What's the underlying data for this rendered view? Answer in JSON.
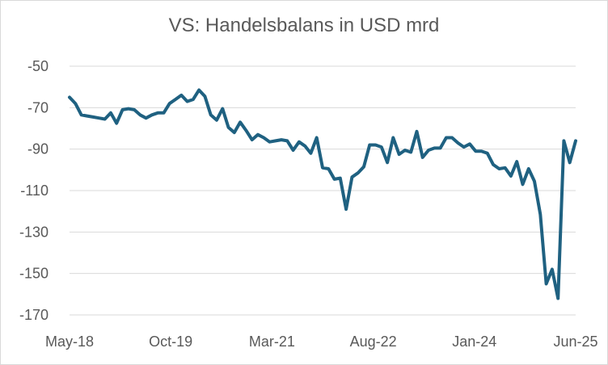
{
  "chart_data": {
    "type": "line",
    "title": "VS: Handelsbalans in USD mrd",
    "xlabel": "",
    "ylabel": "",
    "ylim": [
      -170,
      -50
    ],
    "yticks": [
      -50,
      -70,
      -90,
      -110,
      -130,
      -150,
      -170
    ],
    "xticks": [
      "May-18",
      "Oct-19",
      "Mar-21",
      "Aug-22",
      "Jan-24",
      "Jun-25"
    ],
    "grid": true,
    "legend": "none",
    "line_color": "#1f6181",
    "series": [
      {
        "values": [
          -65,
          -68,
          -73.5,
          -74,
          -74.5,
          -75,
          -75.5,
          -72.5,
          -77.5,
          -71,
          -70.5,
          -71,
          -73.5,
          -75,
          -73.5,
          -72.5,
          -72.5,
          -68,
          -66,
          -64,
          -67,
          -66,
          -61.5,
          -64.5,
          -73.5,
          -76,
          -70.5,
          -79.5,
          -82,
          -77,
          -81,
          -85.5,
          -83,
          -84.5,
          -86.5,
          -86,
          -85.5,
          -86,
          -90.5,
          -86.5,
          -88.5,
          -92,
          -84.5,
          -99,
          -99.5,
          -104.5,
          -104,
          -119,
          -103.5,
          -101.5,
          -98.5,
          -88,
          -88,
          -89,
          -96.5,
          -84.5,
          -92.5,
          -90.5,
          -91.5,
          -81.5,
          -94,
          -90.5,
          -89.5,
          -89.5,
          -84.5,
          -84.5,
          -87,
          -89,
          -87.5,
          -91,
          -91,
          -92,
          -97.5,
          -99.5,
          -99,
          -103,
          -96,
          -107,
          -99.5,
          -105.5,
          -121.5,
          -155,
          -148,
          -162,
          -86,
          -96.5,
          -86
        ]
      }
    ]
  }
}
